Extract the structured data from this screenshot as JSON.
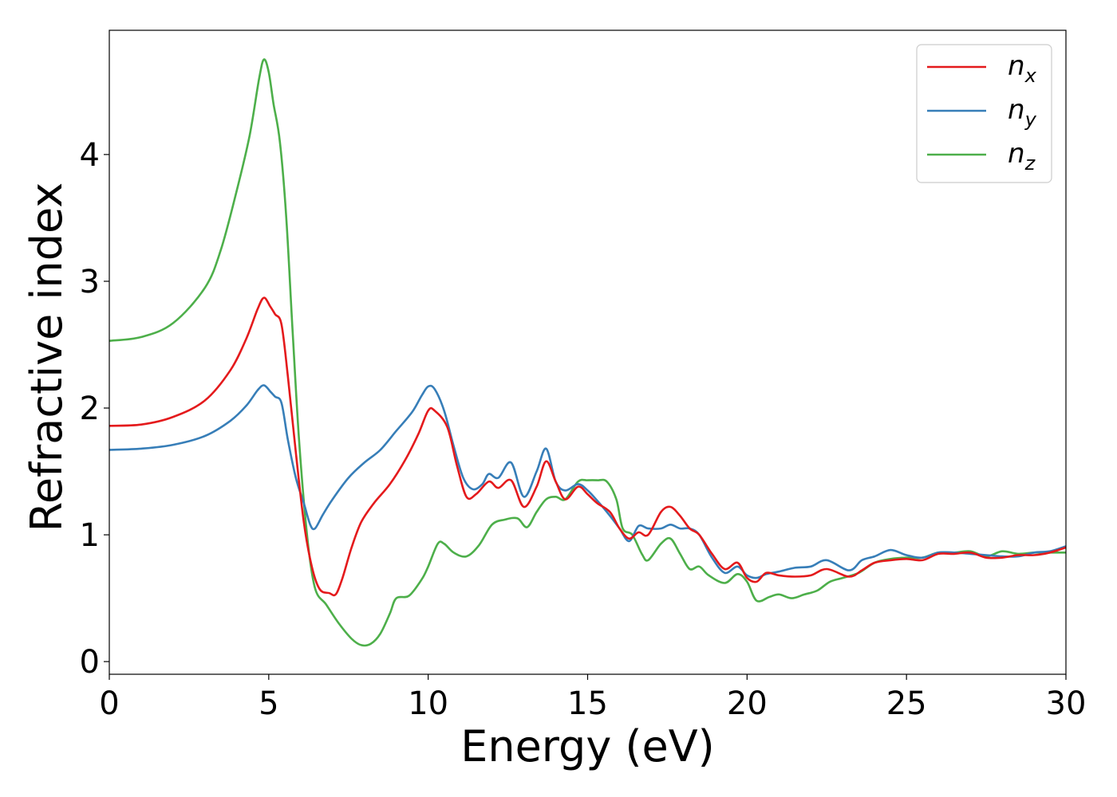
{
  "chart_data": {
    "type": "line",
    "title": "",
    "xlabel": "Energy (eV)",
    "ylabel": "Refractive index",
    "xlim": [
      0,
      30
    ],
    "ylim": [
      -0.1,
      4.98
    ],
    "xticks": [
      0,
      5,
      10,
      15,
      20,
      25,
      30
    ],
    "yticks": [
      0,
      1,
      2,
      3,
      4
    ],
    "xtick_labels": [
      "0",
      "5",
      "10",
      "15",
      "20",
      "25",
      "30"
    ],
    "ytick_labels": [
      "0",
      "1",
      "2",
      "3",
      "4"
    ],
    "grid": false,
    "legend": {
      "position": "top-right"
    },
    "series": [
      {
        "name": "n_x",
        "label_main": "n",
        "label_sub": "x",
        "color": "#e41a1c",
        "points": [
          [
            0,
            1.86
          ],
          [
            1,
            1.87
          ],
          [
            2,
            1.93
          ],
          [
            3,
            2.06
          ],
          [
            3.8,
            2.3
          ],
          [
            4.3,
            2.55
          ],
          [
            4.65,
            2.78
          ],
          [
            4.85,
            2.87
          ],
          [
            5.05,
            2.8
          ],
          [
            5.2,
            2.74
          ],
          [
            5.4,
            2.66
          ],
          [
            5.6,
            2.25
          ],
          [
            5.85,
            1.65
          ],
          [
            6.1,
            1.1
          ],
          [
            6.35,
            0.75
          ],
          [
            6.6,
            0.57
          ],
          [
            6.9,
            0.54
          ],
          [
            7.1,
            0.53
          ],
          [
            7.3,
            0.65
          ],
          [
            7.6,
            0.9
          ],
          [
            7.9,
            1.1
          ],
          [
            8.3,
            1.25
          ],
          [
            8.8,
            1.4
          ],
          [
            9.3,
            1.6
          ],
          [
            9.7,
            1.8
          ],
          [
            10.0,
            1.98
          ],
          [
            10.2,
            1.98
          ],
          [
            10.6,
            1.85
          ],
          [
            10.9,
            1.55
          ],
          [
            11.2,
            1.3
          ],
          [
            11.5,
            1.32
          ],
          [
            11.9,
            1.42
          ],
          [
            12.2,
            1.37
          ],
          [
            12.6,
            1.43
          ],
          [
            13.0,
            1.22
          ],
          [
            13.4,
            1.38
          ],
          [
            13.7,
            1.58
          ],
          [
            14.0,
            1.42
          ],
          [
            14.3,
            1.28
          ],
          [
            14.7,
            1.38
          ],
          [
            15.0,
            1.32
          ],
          [
            15.3,
            1.25
          ],
          [
            15.7,
            1.18
          ],
          [
            16.0,
            1.05
          ],
          [
            16.3,
            0.97
          ],
          [
            16.6,
            1.02
          ],
          [
            16.9,
            1.0
          ],
          [
            17.3,
            1.18
          ],
          [
            17.6,
            1.22
          ],
          [
            17.9,
            1.15
          ],
          [
            18.2,
            1.05
          ],
          [
            18.5,
            1.0
          ],
          [
            18.9,
            0.85
          ],
          [
            19.3,
            0.73
          ],
          [
            19.7,
            0.78
          ],
          [
            20.0,
            0.66
          ],
          [
            20.3,
            0.63
          ],
          [
            20.6,
            0.7
          ],
          [
            21.0,
            0.68
          ],
          [
            21.5,
            0.67
          ],
          [
            22.0,
            0.68
          ],
          [
            22.5,
            0.73
          ],
          [
            23.2,
            0.67
          ],
          [
            23.6,
            0.72
          ],
          [
            24.0,
            0.78
          ],
          [
            24.5,
            0.8
          ],
          [
            25.0,
            0.81
          ],
          [
            25.5,
            0.8
          ],
          [
            26.0,
            0.85
          ],
          [
            26.5,
            0.85
          ],
          [
            27.0,
            0.86
          ],
          [
            27.5,
            0.82
          ],
          [
            28.0,
            0.82
          ],
          [
            28.5,
            0.84
          ],
          [
            29.0,
            0.84
          ],
          [
            29.5,
            0.86
          ],
          [
            30.0,
            0.9
          ]
        ]
      },
      {
        "name": "n_y",
        "label_main": "n",
        "label_sub": "y",
        "color": "#377eb8",
        "points": [
          [
            0,
            1.67
          ],
          [
            1,
            1.68
          ],
          [
            2,
            1.71
          ],
          [
            3,
            1.78
          ],
          [
            3.8,
            1.9
          ],
          [
            4.3,
            2.02
          ],
          [
            4.65,
            2.14
          ],
          [
            4.85,
            2.18
          ],
          [
            5.05,
            2.13
          ],
          [
            5.2,
            2.09
          ],
          [
            5.4,
            2.04
          ],
          [
            5.6,
            1.75
          ],
          [
            5.85,
            1.45
          ],
          [
            6.1,
            1.25
          ],
          [
            6.3,
            1.08
          ],
          [
            6.45,
            1.05
          ],
          [
            6.7,
            1.16
          ],
          [
            7.0,
            1.28
          ],
          [
            7.5,
            1.45
          ],
          [
            8.0,
            1.57
          ],
          [
            8.5,
            1.67
          ],
          [
            9.0,
            1.82
          ],
          [
            9.5,
            1.97
          ],
          [
            9.8,
            2.1
          ],
          [
            10.0,
            2.17
          ],
          [
            10.2,
            2.15
          ],
          [
            10.5,
            1.98
          ],
          [
            10.8,
            1.7
          ],
          [
            11.1,
            1.45
          ],
          [
            11.4,
            1.36
          ],
          [
            11.7,
            1.4
          ],
          [
            11.9,
            1.48
          ],
          [
            12.2,
            1.45
          ],
          [
            12.6,
            1.57
          ],
          [
            13.0,
            1.3
          ],
          [
            13.4,
            1.5
          ],
          [
            13.7,
            1.68
          ],
          [
            14.0,
            1.42
          ],
          [
            14.3,
            1.35
          ],
          [
            14.7,
            1.4
          ],
          [
            15.0,
            1.35
          ],
          [
            15.3,
            1.27
          ],
          [
            15.7,
            1.15
          ],
          [
            16.0,
            1.05
          ],
          [
            16.3,
            0.95
          ],
          [
            16.6,
            1.07
          ],
          [
            16.9,
            1.05
          ],
          [
            17.3,
            1.05
          ],
          [
            17.6,
            1.08
          ],
          [
            17.9,
            1.05
          ],
          [
            18.2,
            1.05
          ],
          [
            18.5,
            1.0
          ],
          [
            18.9,
            0.82
          ],
          [
            19.3,
            0.7
          ],
          [
            19.7,
            0.75
          ],
          [
            20.0,
            0.68
          ],
          [
            20.3,
            0.66
          ],
          [
            20.6,
            0.69
          ],
          [
            21.0,
            0.71
          ],
          [
            21.5,
            0.74
          ],
          [
            22.0,
            0.75
          ],
          [
            22.5,
            0.8
          ],
          [
            23.2,
            0.72
          ],
          [
            23.6,
            0.8
          ],
          [
            24.0,
            0.83
          ],
          [
            24.5,
            0.88
          ],
          [
            25.0,
            0.84
          ],
          [
            25.5,
            0.82
          ],
          [
            26.0,
            0.86
          ],
          [
            26.5,
            0.86
          ],
          [
            27.0,
            0.85
          ],
          [
            27.5,
            0.84
          ],
          [
            28.0,
            0.83
          ],
          [
            28.5,
            0.83
          ],
          [
            29.0,
            0.86
          ],
          [
            29.5,
            0.87
          ],
          [
            30.0,
            0.91
          ]
        ]
      },
      {
        "name": "n_z",
        "label_main": "n",
        "label_sub": "z",
        "color": "#4daf4a",
        "points": [
          [
            0,
            2.53
          ],
          [
            1,
            2.56
          ],
          [
            2,
            2.67
          ],
          [
            3,
            2.95
          ],
          [
            3.5,
            3.25
          ],
          [
            4.0,
            3.72
          ],
          [
            4.4,
            4.15
          ],
          [
            4.7,
            4.6
          ],
          [
            4.85,
            4.75
          ],
          [
            5.0,
            4.65
          ],
          [
            5.15,
            4.4
          ],
          [
            5.35,
            4.1
          ],
          [
            5.55,
            3.5
          ],
          [
            5.75,
            2.6
          ],
          [
            5.95,
            1.75
          ],
          [
            6.2,
            1.0
          ],
          [
            6.45,
            0.58
          ],
          [
            6.8,
            0.45
          ],
          [
            7.2,
            0.3
          ],
          [
            7.6,
            0.18
          ],
          [
            7.9,
            0.13
          ],
          [
            8.2,
            0.14
          ],
          [
            8.5,
            0.22
          ],
          [
            8.8,
            0.38
          ],
          [
            9.0,
            0.5
          ],
          [
            9.4,
            0.52
          ],
          [
            9.8,
            0.65
          ],
          [
            10.0,
            0.75
          ],
          [
            10.3,
            0.93
          ],
          [
            10.5,
            0.93
          ],
          [
            10.8,
            0.86
          ],
          [
            11.2,
            0.83
          ],
          [
            11.6,
            0.92
          ],
          [
            12.0,
            1.08
          ],
          [
            12.4,
            1.12
          ],
          [
            12.8,
            1.13
          ],
          [
            13.1,
            1.06
          ],
          [
            13.4,
            1.18
          ],
          [
            13.7,
            1.28
          ],
          [
            14.0,
            1.3
          ],
          [
            14.3,
            1.28
          ],
          [
            14.7,
            1.42
          ],
          [
            15.0,
            1.43
          ],
          [
            15.3,
            1.43
          ],
          [
            15.6,
            1.42
          ],
          [
            15.9,
            1.28
          ],
          [
            16.1,
            1.05
          ],
          [
            16.4,
            1.0
          ],
          [
            16.7,
            0.85
          ],
          [
            16.9,
            0.8
          ],
          [
            17.3,
            0.93
          ],
          [
            17.6,
            0.97
          ],
          [
            17.9,
            0.85
          ],
          [
            18.2,
            0.73
          ],
          [
            18.5,
            0.75
          ],
          [
            18.8,
            0.68
          ],
          [
            19.3,
            0.62
          ],
          [
            19.7,
            0.69
          ],
          [
            20.0,
            0.63
          ],
          [
            20.3,
            0.48
          ],
          [
            20.7,
            0.51
          ],
          [
            21.0,
            0.53
          ],
          [
            21.4,
            0.5
          ],
          [
            21.8,
            0.53
          ],
          [
            22.2,
            0.56
          ],
          [
            22.6,
            0.63
          ],
          [
            23.0,
            0.66
          ],
          [
            23.5,
            0.7
          ],
          [
            24.0,
            0.78
          ],
          [
            24.5,
            0.81
          ],
          [
            25.0,
            0.82
          ],
          [
            25.5,
            0.82
          ],
          [
            26.0,
            0.86
          ],
          [
            26.5,
            0.86
          ],
          [
            27.0,
            0.87
          ],
          [
            27.5,
            0.83
          ],
          [
            28.0,
            0.87
          ],
          [
            28.5,
            0.85
          ],
          [
            29.0,
            0.86
          ],
          [
            29.5,
            0.86
          ],
          [
            30.0,
            0.86
          ]
        ]
      }
    ]
  }
}
